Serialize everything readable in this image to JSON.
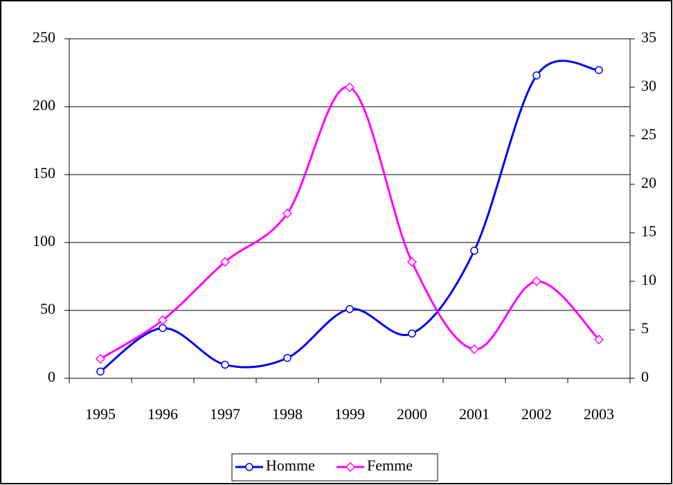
{
  "chart_data": {
    "type": "line",
    "categories": [
      "1995",
      "1996",
      "1997",
      "1998",
      "1999",
      "2000",
      "2001",
      "2002",
      "2003"
    ],
    "series": [
      {
        "name": "Homme",
        "color": "#0000ee",
        "marker": "circle",
        "values": [
          5,
          37,
          10,
          15,
          51,
          33,
          94,
          223,
          227
        ]
      },
      {
        "name": "Femme",
        "color": "#ff00ff",
        "marker": "diamond",
        "axis": "y2",
        "values": [
          2,
          6,
          12,
          17,
          30,
          12,
          3,
          10,
          4
        ]
      }
    ],
    "ylim": [
      0,
      250
    ],
    "yticks": [
      0,
      50,
      100,
      150,
      200,
      250
    ],
    "y2lim": [
      0,
      35
    ],
    "y2ticks": [
      0,
      5,
      10,
      15,
      20,
      25,
      30,
      35
    ],
    "grid": true,
    "smooth": true,
    "legend": "bottom"
  }
}
